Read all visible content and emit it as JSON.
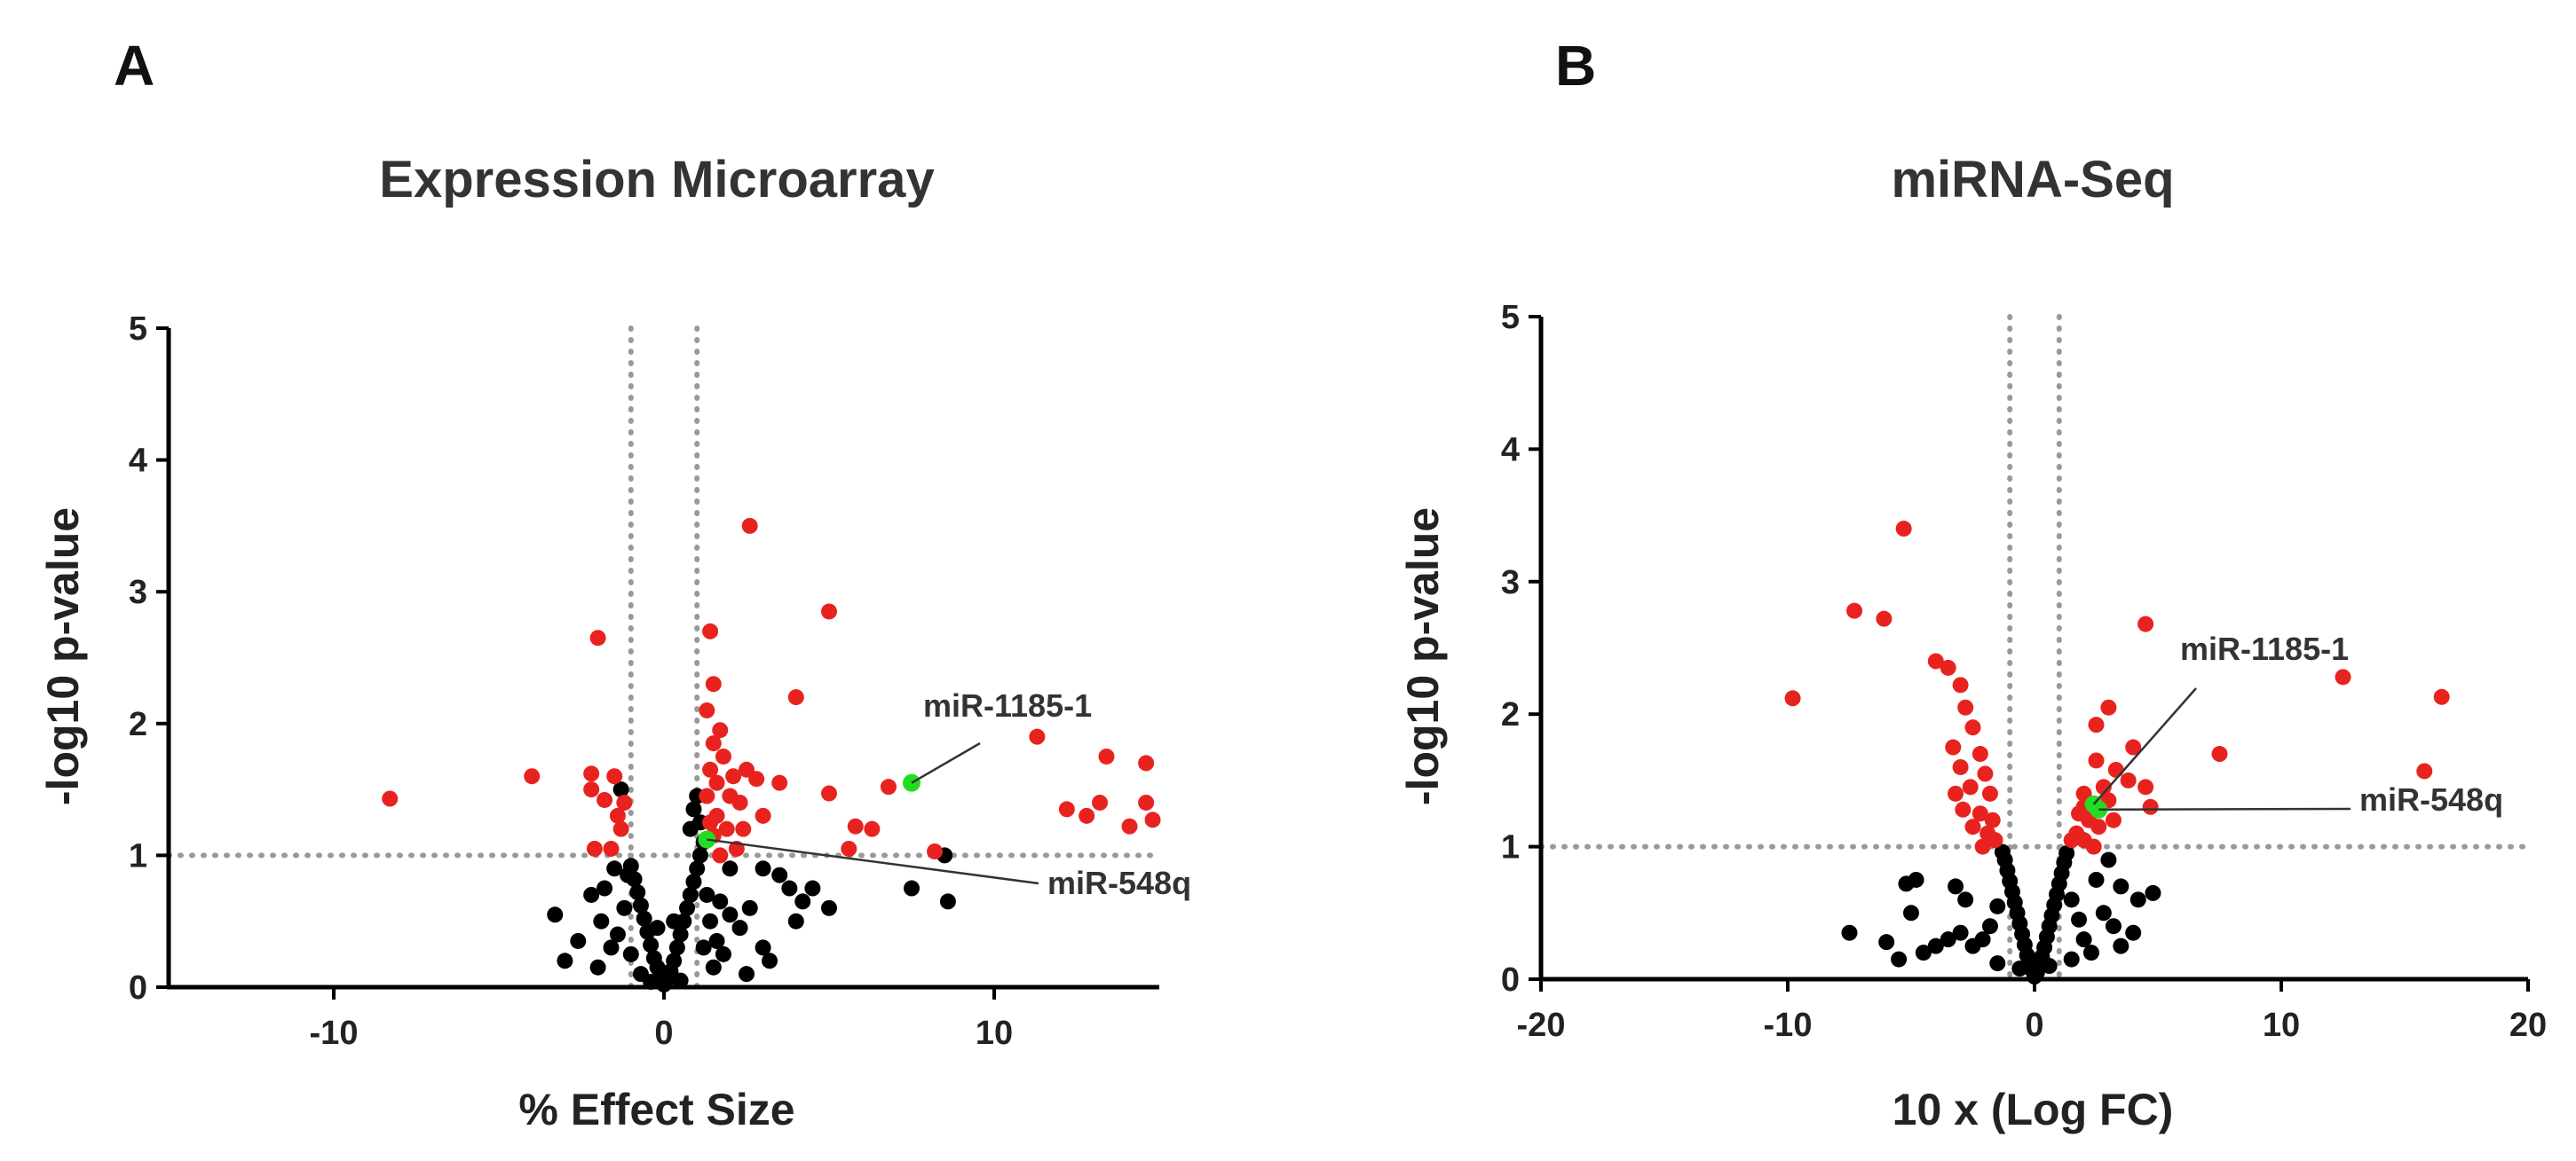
{
  "chart_data": [
    {
      "type": "scatter",
      "panel": "A",
      "title": "Expression Microarray",
      "xlabel": "% Effect Size",
      "ylabel": "-log10 p-value",
      "xlim": [
        -15,
        15
      ],
      "ylim": [
        0,
        5
      ],
      "xticks": [
        -10,
        0,
        10
      ],
      "yticks": [
        0,
        1,
        2,
        3,
        4,
        5
      ],
      "thresholds": {
        "x": [
          -1,
          1
        ],
        "y": 1
      },
      "colors": {
        "significant": "#e8231f",
        "nonsignificant": "#000000",
        "highlight": "#22dd22"
      },
      "series": [
        {
          "name": "significant",
          "color": "#e8231f",
          "points": [
            [
              2.6,
              3.5
            ],
            [
              5.0,
              2.85
            ],
            [
              -2.0,
              2.65
            ],
            [
              1.4,
              2.7
            ],
            [
              1.5,
              2.3
            ],
            [
              1.3,
              2.1
            ],
            [
              4.0,
              2.2
            ],
            [
              1.7,
              1.95
            ],
            [
              1.5,
              1.85
            ],
            [
              1.8,
              1.75
            ],
            [
              1.4,
              1.65
            ],
            [
              2.1,
              1.6
            ],
            [
              2.5,
              1.65
            ],
            [
              2.8,
              1.58
            ],
            [
              3.5,
              1.55
            ],
            [
              1.6,
              1.55
            ],
            [
              1.3,
              1.45
            ],
            [
              2.0,
              1.45
            ],
            [
              2.3,
              1.4
            ],
            [
              1.6,
              1.3
            ],
            [
              1.4,
              1.25
            ],
            [
              3.0,
              1.3
            ],
            [
              1.9,
              1.2
            ],
            [
              2.4,
              1.2
            ],
            [
              1.5,
              1.15
            ],
            [
              2.2,
              1.05
            ],
            [
              1.7,
              1.0
            ],
            [
              -1.2,
              1.4
            ],
            [
              -1.4,
              1.3
            ],
            [
              -2.2,
              1.62
            ],
            [
              -2.2,
              1.5
            ],
            [
              -1.5,
              1.6
            ],
            [
              -1.8,
              1.42
            ],
            [
              -1.3,
              1.2
            ],
            [
              -2.1,
              1.05
            ],
            [
              -1.6,
              1.05
            ],
            [
              -4.0,
              1.6
            ],
            [
              -8.3,
              1.43
            ],
            [
              5.0,
              1.47
            ],
            [
              5.8,
              1.22
            ],
            [
              6.3,
              1.2
            ],
            [
              5.6,
              1.05
            ],
            [
              6.8,
              1.52
            ],
            [
              8.2,
              1.03
            ],
            [
              11.3,
              1.9
            ],
            [
              12.2,
              1.35
            ],
            [
              12.8,
              1.3
            ],
            [
              13.2,
              1.4
            ],
            [
              13.4,
              1.75
            ],
            [
              14.1,
              1.22
            ],
            [
              14.6,
              1.7
            ],
            [
              14.6,
              1.4
            ],
            [
              14.8,
              1.27
            ]
          ]
        },
        {
          "name": "nonsignificant",
          "color": "#000000",
          "points": [
            [
              0.0,
              0.02
            ],
            [
              0.1,
              0.06
            ],
            [
              -0.1,
              0.08
            ],
            [
              0.2,
              0.12
            ],
            [
              -0.2,
              0.15
            ],
            [
              0.3,
              0.2
            ],
            [
              -0.3,
              0.22
            ],
            [
              0.4,
              0.3
            ],
            [
              -0.4,
              0.32
            ],
            [
              0.5,
              0.4
            ],
            [
              -0.5,
              0.42
            ],
            [
              0.6,
              0.5
            ],
            [
              -0.6,
              0.52
            ],
            [
              0.7,
              0.6
            ],
            [
              -0.7,
              0.62
            ],
            [
              0.8,
              0.7
            ],
            [
              -0.8,
              0.72
            ],
            [
              0.9,
              0.8
            ],
            [
              -0.9,
              0.82
            ],
            [
              1.0,
              0.9
            ],
            [
              -1.0,
              0.92
            ],
            [
              1.1,
              1.0
            ],
            [
              1.2,
              1.1
            ],
            [
              1.1,
              1.25
            ],
            [
              0.9,
              1.35
            ],
            [
              1.0,
              1.45
            ],
            [
              0.8,
              1.2
            ],
            [
              1.3,
              0.7
            ],
            [
              1.4,
              0.5
            ],
            [
              1.6,
              0.35
            ],
            [
              1.8,
              0.25
            ],
            [
              2.0,
              0.55
            ],
            [
              2.3,
              0.45
            ],
            [
              2.6,
              0.6
            ],
            [
              3.0,
              0.3
            ],
            [
              -1.2,
              0.6
            ],
            [
              -1.4,
              0.4
            ],
            [
              -1.6,
              0.3
            ],
            [
              -1.9,
              0.5
            ],
            [
              -2.2,
              0.7
            ],
            [
              -2.6,
              0.35
            ],
            [
              -3.0,
              0.2
            ],
            [
              -3.3,
              0.55
            ],
            [
              -1.1,
              0.85
            ],
            [
              -1.3,
              1.5
            ],
            [
              -1.5,
              0.9
            ],
            [
              3.8,
              0.75
            ],
            [
              4.2,
              0.65
            ],
            [
              4.5,
              0.75
            ],
            [
              3.5,
              0.85
            ],
            [
              5.0,
              0.6
            ],
            [
              4.0,
              0.5
            ],
            [
              3.0,
              0.9
            ],
            [
              2.0,
              0.9
            ],
            [
              3.2,
              0.2
            ],
            [
              7.5,
              0.75
            ],
            [
              8.5,
              1.0
            ],
            [
              8.6,
              0.65
            ],
            [
              1.5,
              0.15
            ],
            [
              -0.7,
              0.1
            ],
            [
              0.5,
              0.05
            ],
            [
              -0.4,
              0.04
            ],
            [
              1.2,
              0.3
            ],
            [
              -1.0,
              0.25
            ],
            [
              2.5,
              0.1
            ],
            [
              -2.0,
              0.15
            ],
            [
              0.3,
              0.5
            ],
            [
              -0.2,
              0.45
            ],
            [
              1.7,
              0.65
            ],
            [
              -1.8,
              0.75
            ]
          ]
        },
        {
          "name": "highlight",
          "color": "#22dd22",
          "points": [
            [
              7.5,
              1.55
            ],
            [
              1.3,
              1.12
            ]
          ]
        }
      ],
      "annotations": [
        {
          "text": "miR-1185-1",
          "target": [
            7.5,
            1.55
          ]
        },
        {
          "text": "miR-548q",
          "target": [
            1.3,
            1.12
          ]
        }
      ]
    },
    {
      "type": "scatter",
      "panel": "B",
      "title": "miRNA-Seq",
      "xlabel": "10 x (Log FC)",
      "ylabel": "-log10 p-value",
      "xlim": [
        -20,
        20
      ],
      "ylim": [
        0,
        5
      ],
      "xticks": [
        -20,
        -10,
        0,
        10,
        20
      ],
      "yticks": [
        0,
        1,
        2,
        3,
        4,
        5
      ],
      "thresholds": {
        "x": [
          -1,
          1
        ],
        "y": 1
      },
      "colors": {
        "significant": "#e8231f",
        "nonsignificant": "#000000",
        "highlight": "#22dd22"
      },
      "series": [
        {
          "name": "significant",
          "color": "#e8231f",
          "points": [
            [
              -5.3,
              3.4
            ],
            [
              -7.3,
              2.78
            ],
            [
              -6.1,
              2.72
            ],
            [
              -4.0,
              2.4
            ],
            [
              -3.5,
              2.35
            ],
            [
              -3.0,
              2.22
            ],
            [
              -9.8,
              2.12
            ],
            [
              -2.8,
              2.05
            ],
            [
              -2.5,
              1.9
            ],
            [
              -3.3,
              1.75
            ],
            [
              -2.2,
              1.7
            ],
            [
              -3.0,
              1.6
            ],
            [
              -2.0,
              1.55
            ],
            [
              -2.6,
              1.45
            ],
            [
              -3.2,
              1.4
            ],
            [
              -1.8,
              1.4
            ],
            [
              -2.9,
              1.28
            ],
            [
              -2.2,
              1.25
            ],
            [
              -1.7,
              1.2
            ],
            [
              -2.5,
              1.15
            ],
            [
              -1.9,
              1.1
            ],
            [
              -1.6,
              1.05
            ],
            [
              -2.1,
              1.0
            ],
            [
              4.5,
              2.68
            ],
            [
              12.5,
              2.28
            ],
            [
              16.5,
              2.13
            ],
            [
              3.0,
              2.05
            ],
            [
              2.5,
              1.92
            ],
            [
              4.0,
              1.75
            ],
            [
              7.5,
              1.7
            ],
            [
              2.5,
              1.65
            ],
            [
              3.3,
              1.58
            ],
            [
              2.8,
              1.45
            ],
            [
              3.8,
              1.5
            ],
            [
              4.5,
              1.45
            ],
            [
              2.0,
              1.4
            ],
            [
              3.0,
              1.35
            ],
            [
              4.7,
              1.3
            ],
            [
              15.8,
              1.57
            ],
            [
              1.8,
              1.25
            ],
            [
              2.2,
              1.2
            ],
            [
              2.6,
              1.15
            ],
            [
              1.7,
              1.1
            ],
            [
              2.0,
              1.05
            ],
            [
              2.4,
              1.0
            ],
            [
              1.5,
              1.05
            ],
            [
              3.2,
              1.2
            ],
            [
              2.0,
              1.3
            ]
          ]
        },
        {
          "name": "nonsignificant",
          "color": "#000000",
          "points": [
            [
              0.0,
              0.02
            ],
            [
              0.1,
              0.05
            ],
            [
              -0.1,
              0.07
            ],
            [
              0.2,
              0.1
            ],
            [
              -0.2,
              0.12
            ],
            [
              0.3,
              0.17
            ],
            [
              -0.3,
              0.18
            ],
            [
              0.4,
              0.24
            ],
            [
              -0.4,
              0.26
            ],
            [
              0.5,
              0.32
            ],
            [
              -0.5,
              0.34
            ],
            [
              0.6,
              0.4
            ],
            [
              -0.6,
              0.42
            ],
            [
              0.7,
              0.48
            ],
            [
              -0.7,
              0.5
            ],
            [
              0.8,
              0.56
            ],
            [
              -0.8,
              0.58
            ],
            [
              0.9,
              0.64
            ],
            [
              -0.9,
              0.66
            ],
            [
              1.0,
              0.72
            ],
            [
              -1.0,
              0.74
            ],
            [
              1.1,
              0.8
            ],
            [
              -1.1,
              0.82
            ],
            [
              1.2,
              0.88
            ],
            [
              -1.2,
              0.9
            ],
            [
              1.3,
              0.95
            ],
            [
              -1.3,
              0.96
            ],
            [
              1.5,
              0.6
            ],
            [
              1.8,
              0.45
            ],
            [
              2.0,
              0.3
            ],
            [
              2.3,
              0.2
            ],
            [
              -1.5,
              0.55
            ],
            [
              -1.8,
              0.4
            ],
            [
              -2.1,
              0.3
            ],
            [
              -2.5,
              0.25
            ],
            [
              -3.0,
              0.35
            ],
            [
              -3.5,
              0.3
            ],
            [
              -4.0,
              0.25
            ],
            [
              -4.5,
              0.2
            ],
            [
              -5.5,
              0.15
            ],
            [
              -6.0,
              0.28
            ],
            [
              -7.5,
              0.35
            ],
            [
              -5.0,
              0.5
            ],
            [
              -5.2,
              0.72
            ],
            [
              -4.8,
              0.75
            ],
            [
              2.8,
              0.5
            ],
            [
              3.2,
              0.4
            ],
            [
              3.5,
              0.7
            ],
            [
              4.0,
              0.35
            ],
            [
              4.2,
              0.6
            ],
            [
              4.8,
              0.65
            ],
            [
              3.5,
              0.25
            ],
            [
              2.5,
              0.75
            ],
            [
              3.0,
              0.9
            ],
            [
              -2.8,
              0.6
            ],
            [
              -3.2,
              0.7
            ],
            [
              0.6,
              0.1
            ],
            [
              -0.6,
              0.08
            ],
            [
              1.5,
              0.15
            ],
            [
              -1.5,
              0.12
            ]
          ]
        },
        {
          "name": "highlight",
          "color": "#22dd22",
          "points": [
            [
              2.4,
              1.32
            ],
            [
              2.6,
              1.28
            ]
          ]
        }
      ],
      "annotations": [
        {
          "text": "miR-1185-1",
          "target": [
            2.4,
            1.32
          ]
        },
        {
          "text": "miR-548q",
          "target": [
            2.6,
            1.28
          ]
        }
      ]
    }
  ]
}
